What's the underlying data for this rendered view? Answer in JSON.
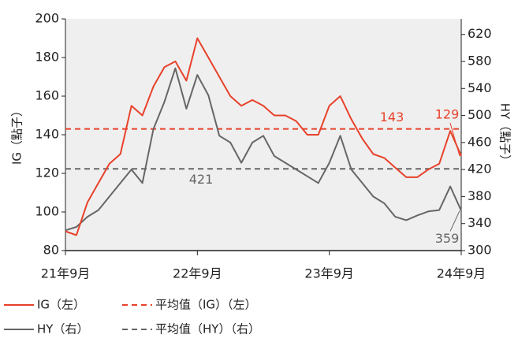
{
  "chart_data": {
    "type": "line",
    "x": [
      "2021-09",
      "2021-10",
      "2021-11",
      "2021-12",
      "2022-01",
      "2022-02",
      "2022-03",
      "2022-04",
      "2022-05",
      "2022-06",
      "2022-07",
      "2022-08",
      "2022-09",
      "2022-10",
      "2022-11",
      "2022-12",
      "2023-01",
      "2023-02",
      "2023-03",
      "2023-04",
      "2023-05",
      "2023-06",
      "2023-07",
      "2023-08",
      "2023-09",
      "2023-10",
      "2023-11",
      "2023-12",
      "2024-01",
      "2024-02",
      "2024-03",
      "2024-04",
      "2024-05",
      "2024-06",
      "2024-07",
      "2024-08",
      "2024-09"
    ],
    "xlim": [
      "2021-09",
      "2024-09"
    ],
    "xticks": [
      {
        "value": "2021-09",
        "label": "21年9月"
      },
      {
        "value": "2022-09",
        "label": "22年9月"
      },
      {
        "value": "2023-09",
        "label": "23年9月"
      },
      {
        "value": "2024-09",
        "label": "24年9月"
      }
    ],
    "ylabel": "IG（點子）",
    "y2label": "HY（點子）",
    "ylim": [
      80,
      200
    ],
    "yticks": [
      80,
      100,
      120,
      140,
      160,
      180,
      200
    ],
    "y2lim": [
      300,
      643
    ],
    "y2ticks": [
      300,
      340,
      380,
      420,
      460,
      500,
      540,
      580,
      620
    ],
    "series": [
      {
        "name": "IG（左）",
        "color": "#e8412a",
        "values": [
          90,
          88,
          105,
          115,
          125,
          130,
          155,
          150,
          165,
          175,
          178,
          168,
          190,
          180,
          170,
          160,
          155,
          158,
          155,
          150,
          150,
          147,
          140,
          140,
          155,
          160,
          148,
          138,
          130,
          128,
          123,
          118,
          118,
          122,
          125,
          142,
          129
        ]
      },
      {
        "name": "HY（右）",
        "color": "#666666",
        "axis": "y2",
        "values": [
          330,
          335,
          350,
          360,
          380,
          400,
          420,
          400,
          480,
          520,
          570,
          510,
          560,
          530,
          470,
          460,
          430,
          460,
          470,
          440,
          430,
          420,
          410,
          400,
          430,
          470,
          420,
          400,
          380,
          370,
          350,
          345,
          352,
          358,
          360,
          395,
          359
        ]
      }
    ],
    "reference_lines": [
      {
        "name": "平均值（IG）（左）",
        "color": "#e8412a",
        "value": 143,
        "linestyle": "dashed"
      },
      {
        "name": "平均值（HY）（右）",
        "color": "#666666",
        "value": 421,
        "axis": "y2",
        "linestyle": "dashed"
      }
    ],
    "plot_background": "#efefef"
  }
}
